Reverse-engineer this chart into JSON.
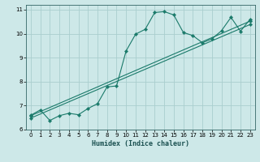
{
  "xlabel": "Humidex (Indice chaleur)",
  "xlim": [
    -0.5,
    23.5
  ],
  "ylim": [
    6,
    11.2
  ],
  "xticks": [
    0,
    1,
    2,
    3,
    4,
    5,
    6,
    7,
    8,
    9,
    10,
    11,
    12,
    13,
    14,
    15,
    16,
    17,
    18,
    19,
    20,
    21,
    22,
    23
  ],
  "yticks": [
    6,
    7,
    8,
    9,
    10,
    11
  ],
  "background_color": "#cde8e8",
  "grid_color": "#aacece",
  "line_color": "#1a7a6a",
  "line1_x": [
    0,
    1,
    2,
    3,
    4,
    5,
    6,
    7,
    8,
    9,
    10,
    11,
    12,
    13,
    14,
    15,
    16,
    17,
    18,
    19,
    20,
    21,
    22,
    23
  ],
  "line1_y": [
    6.6,
    6.82,
    6.38,
    6.58,
    6.68,
    6.62,
    6.88,
    7.08,
    7.78,
    7.82,
    9.28,
    9.98,
    10.18,
    10.88,
    10.92,
    10.78,
    10.05,
    9.92,
    9.62,
    9.78,
    10.12,
    10.68,
    10.1,
    10.6
  ],
  "line2_x": [
    0,
    23
  ],
  "line2_y": [
    6.58,
    10.52
  ],
  "line3_x": [
    0,
    23
  ],
  "line3_y": [
    6.48,
    10.38
  ],
  "figsize": [
    3.2,
    2.0
  ],
  "dpi": 100
}
